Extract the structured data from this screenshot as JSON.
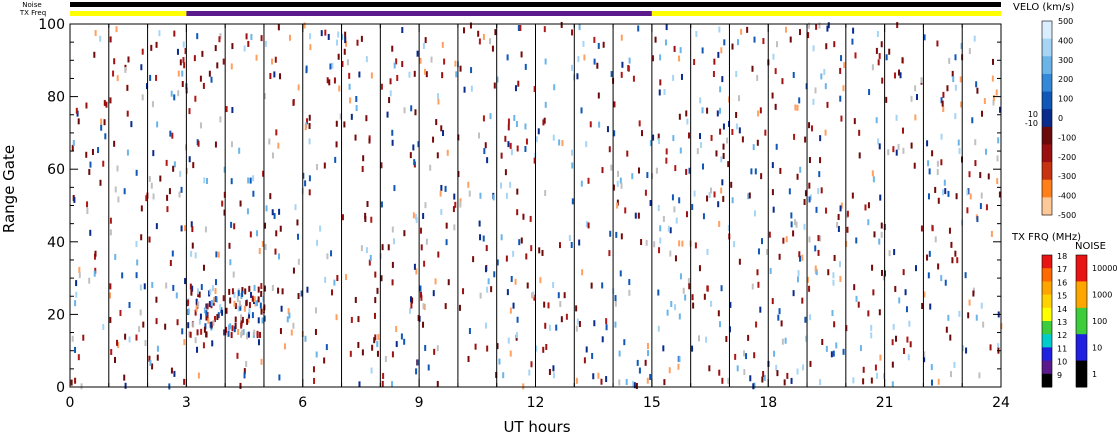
{
  "chart_data": {
    "type": "scatter",
    "title": "",
    "xlabel": "UT hours",
    "ylabel": "Range Gate",
    "xlim": [
      0,
      24
    ],
    "ylim": [
      0,
      100
    ],
    "x_ticks": [
      "0",
      "3",
      "6",
      "9",
      "12",
      "15",
      "18",
      "21",
      "24"
    ],
    "y_ticks": [
      "0",
      "20",
      "40",
      "60",
      "80",
      "100"
    ],
    "scan_boundaries_ut": [
      1,
      2,
      3,
      4,
      5,
      6,
      7,
      8,
      9,
      10,
      11,
      12,
      13,
      14,
      15,
      16,
      17,
      18,
      19,
      20,
      21,
      22,
      23
    ],
    "top_bars": {
      "noise_label": "Noise",
      "txfreq_label": "TX Freq",
      "noise_color": "#000000",
      "txfreq_segments": [
        {
          "start": 0,
          "end": 3,
          "color": "#ffff00"
        },
        {
          "start": 3,
          "end": 15,
          "color": "#5a1a8c"
        },
        {
          "start": 15,
          "end": 24,
          "color": "#ffff00"
        }
      ]
    },
    "velocity_colorbar": {
      "title": "VELO (km/s)",
      "ticks": [
        "500",
        "400",
        "300",
        "200",
        "100",
        "0",
        "-100",
        "-200",
        "-300",
        "-400",
        "-500"
      ],
      "side_labels": [
        "10",
        "-10"
      ],
      "colors": [
        "#dbeeff",
        "#a6d4f5",
        "#6bb4e8",
        "#3488d8",
        "#0f58b8",
        "#0a2a8c",
        "#6a0a0a",
        "#9a1010",
        "#c83210",
        "#ff7f1a",
        "#ffc898"
      ]
    },
    "txfreq_colorbar": {
      "title": "TX FRQ (MHz)",
      "ticks": [
        "18",
        "17",
        "16",
        "15",
        "14",
        "13",
        "12",
        "11",
        "10",
        "9"
      ],
      "colors": [
        "#e81414",
        "#ff6a00",
        "#ffa500",
        "#ffd200",
        "#ffff00",
        "#3ccc3c",
        "#00cccc",
        "#2020e0",
        "#5a1a8c",
        "#000000"
      ]
    },
    "noise_colorbar": {
      "title": "NOISE",
      "ticks": [
        "10000",
        "1000",
        "100",
        "10",
        "1"
      ],
      "colors": [
        "#e81414",
        "#ffa500",
        "#3ccc3c",
        "#2020e0",
        "#000000"
      ]
    },
    "scatter_colors": [
      "#7a0a0a",
      "#9a1010",
      "#0a2a8c",
      "#b01818",
      "#c0c0c0",
      "#a6d4f5",
      "#6bb4e8",
      "#ffa060",
      "#6a0a0a",
      "#0f58b8"
    ]
  }
}
